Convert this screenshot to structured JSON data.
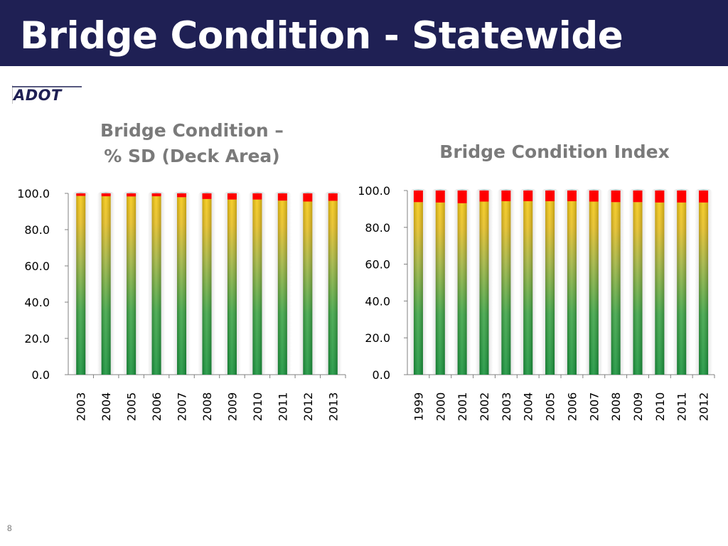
{
  "slide": {
    "title": "Bridge Condition - Statewide",
    "logo_text": "ADOT",
    "page_number": "8"
  },
  "colors": {
    "header_bg": "#1f2054",
    "good": "#1a9a3c",
    "fair": "#f2c311",
    "poor": "#ff0000",
    "title_gray": "#7a7a7a"
  },
  "chart_data": [
    {
      "type": "bar",
      "stacked": true,
      "title": "Bridge Condition –\n% SD (Deck Area)",
      "categories": [
        "2003",
        "2004",
        "2005",
        "2006",
        "2007",
        "2008",
        "2009",
        "2010",
        "2011",
        "2012",
        "2013"
      ],
      "series": [
        {
          "values": [
            98.6,
            98.4,
            98.3,
            98.4,
            97.9,
            96.9,
            96.6,
            96.6,
            96.0,
            95.5,
            95.9
          ]
        },
        {
          "values": [
            1.4,
            1.6,
            1.7,
            1.6,
            2.1,
            3.1,
            3.4,
            3.4,
            4.0,
            4.5,
            4.1
          ]
        }
      ],
      "ylim": [
        0,
        100
      ],
      "yticks": [
        "0.0",
        "20.0",
        "40.0",
        "60.0",
        "80.0",
        "100.0"
      ],
      "xlabel": "",
      "ylabel": "",
      "legend": "none",
      "grid": false
    },
    {
      "type": "bar",
      "stacked": true,
      "title": "Bridge Condition Index",
      "categories": [
        "1999",
        "2000",
        "2001",
        "2002",
        "2003",
        "2004",
        "2005",
        "2006",
        "2007",
        "2008",
        "2009",
        "2010",
        "2011",
        "2012"
      ],
      "series": [
        {
          "values": [
            93.7,
            93.5,
            93.1,
            94.0,
            94.2,
            94.2,
            94.2,
            94.2,
            94.0,
            93.7,
            93.7,
            93.5,
            93.5,
            93.5
          ]
        },
        {
          "values": [
            6.3,
            6.5,
            6.9,
            6.0,
            5.8,
            5.8,
            5.8,
            5.8,
            6.0,
            6.3,
            6.3,
            6.5,
            6.5,
            6.5
          ]
        }
      ],
      "ylim": [
        0,
        100
      ],
      "yticks": [
        "0.0",
        "20.0",
        "40.0",
        "60.0",
        "80.0",
        "100.0"
      ],
      "xlabel": "",
      "ylabel": "",
      "legend": "none",
      "grid": false
    }
  ]
}
